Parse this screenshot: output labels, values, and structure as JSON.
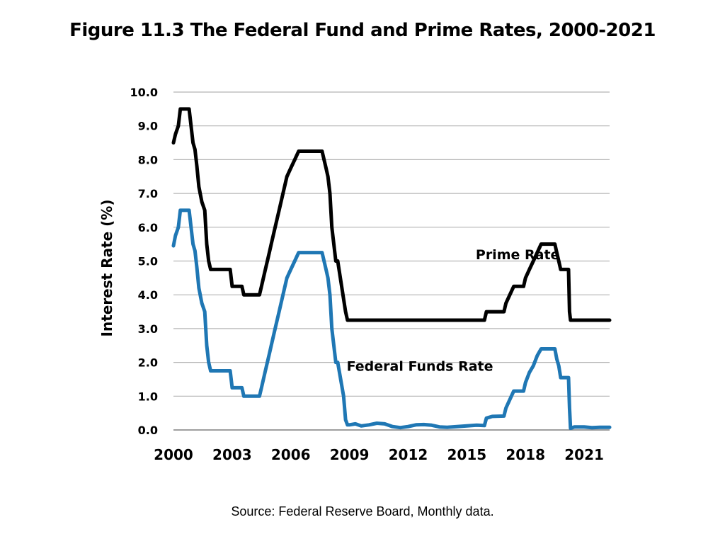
{
  "page": {
    "title": "Figure 11.3 The Federal Fund and Prime Rates, 2000-2021",
    "source": "Source: Federal Reserve Board, Monthly data."
  },
  "chart_data": {
    "type": "line",
    "title": "Figure 11.3 The Federal Fund and Prime Rates, 2000-2021",
    "xlabel": "",
    "ylabel": "Interest Rate (%)",
    "xlim": [
      2000,
      2022.3
    ],
    "ylim": [
      0,
      10
    ],
    "y_ticks": [
      0,
      1,
      2,
      3,
      4,
      5,
      6,
      7,
      8,
      9,
      10
    ],
    "y_tick_labels": [
      "0.0",
      "1.0",
      "2.0",
      "3.0",
      "4.0",
      "5.0",
      "6.0",
      "7.0",
      "8.0",
      "9.0",
      "10.0"
    ],
    "x_ticks": [
      2000,
      2003,
      2006,
      2009,
      2012,
      2015,
      2018,
      2021
    ],
    "x_tick_labels": [
      "2000",
      "2003",
      "2006",
      "2009",
      "2012",
      "2015",
      "2018",
      "2021"
    ],
    "grid": "horizontal",
    "series": [
      {
        "name": "Prime Rate",
        "color": "#000000",
        "label_anchor": [
          2017.6,
          5.05
        ],
        "x": [
          2000.0,
          2000.1,
          2000.25,
          2000.35,
          2000.5,
          2000.8,
          2001.0,
          2001.1,
          2001.2,
          2001.3,
          2001.45,
          2001.6,
          2001.7,
          2001.8,
          2001.9,
          2002.0,
          2002.1,
          2002.9,
          2003.0,
          2003.5,
          2003.6,
          2004.4,
          2004.5,
          2004.7,
          2004.9,
          2005.0,
          2005.2,
          2005.4,
          2005.6,
          2005.8,
          2006.0,
          2006.2,
          2006.4,
          2006.5,
          2006.6,
          2007.6,
          2007.8,
          2007.9,
          2008.0,
          2008.1,
          2008.3,
          2008.4,
          2008.8,
          2008.9,
          2009.0,
          2015.9,
          2016.0,
          2016.9,
          2017.0,
          2017.2,
          2017.4,
          2017.9,
          2018.0,
          2018.2,
          2018.4,
          2018.6,
          2018.8,
          2019.0,
          2019.5,
          2019.6,
          2019.7,
          2019.8,
          2020.2,
          2020.25,
          2020.3,
          2022.3
        ],
        "values": [
          8.5,
          8.75,
          9.0,
          9.5,
          9.5,
          9.5,
          8.5,
          8.3,
          7.8,
          7.2,
          6.75,
          6.5,
          5.5,
          5.0,
          4.75,
          4.75,
          4.75,
          4.75,
          4.25,
          4.25,
          4.0,
          4.0,
          4.25,
          4.75,
          5.25,
          5.5,
          6.0,
          6.5,
          7.0,
          7.5,
          7.75,
          8.0,
          8.25,
          8.25,
          8.25,
          8.25,
          7.75,
          7.5,
          7.0,
          6.0,
          5.0,
          5.0,
          3.5,
          3.25,
          3.25,
          3.25,
          3.5,
          3.5,
          3.75,
          4.0,
          4.25,
          4.25,
          4.5,
          4.75,
          5.0,
          5.25,
          5.5,
          5.5,
          5.5,
          5.25,
          5.0,
          4.75,
          4.75,
          3.5,
          3.25,
          3.25
        ]
      },
      {
        "name": "Federal Funds  Rate",
        "color": "#1f77b4",
        "label_anchor": [
          2012.6,
          1.75
        ],
        "x": [
          2000.0,
          2000.1,
          2000.25,
          2000.35,
          2000.5,
          2000.8,
          2001.0,
          2001.1,
          2001.2,
          2001.3,
          2001.45,
          2001.6,
          2001.7,
          2001.8,
          2001.9,
          2002.0,
          2002.1,
          2002.9,
          2003.0,
          2003.5,
          2003.6,
          2004.0,
          2004.4,
          2004.5,
          2004.7,
          2004.9,
          2005.0,
          2005.2,
          2005.4,
          2005.6,
          2005.8,
          2006.0,
          2006.2,
          2006.4,
          2006.5,
          2006.6,
          2007.6,
          2007.8,
          2007.9,
          2008.0,
          2008.1,
          2008.3,
          2008.4,
          2008.7,
          2008.8,
          2008.9,
          2009.0,
          2009.3,
          2009.6,
          2010.0,
          2010.4,
          2010.8,
          2011.2,
          2011.6,
          2012.0,
          2012.4,
          2012.8,
          2013.2,
          2013.6,
          2014.0,
          2014.5,
          2015.0,
          2015.5,
          2015.9,
          2016.0,
          2016.3,
          2016.9,
          2017.0,
          2017.2,
          2017.4,
          2017.9,
          2018.0,
          2018.2,
          2018.4,
          2018.6,
          2018.8,
          2019.0,
          2019.5,
          2019.6,
          2019.7,
          2019.8,
          2020.2,
          2020.25,
          2020.3,
          2020.5,
          2021.0,
          2021.4,
          2021.8,
          2022.3
        ],
        "values": [
          5.45,
          5.75,
          6.0,
          6.5,
          6.5,
          6.5,
          5.5,
          5.3,
          4.8,
          4.2,
          3.75,
          3.5,
          2.5,
          2.0,
          1.75,
          1.75,
          1.75,
          1.75,
          1.25,
          1.25,
          1.0,
          1.0,
          1.0,
          1.25,
          1.75,
          2.25,
          2.5,
          3.0,
          3.5,
          4.0,
          4.5,
          4.75,
          5.0,
          5.25,
          5.25,
          5.25,
          5.25,
          4.75,
          4.5,
          4.0,
          3.0,
          2.0,
          2.0,
          1.0,
          0.3,
          0.15,
          0.15,
          0.18,
          0.12,
          0.15,
          0.2,
          0.18,
          0.1,
          0.07,
          0.1,
          0.15,
          0.16,
          0.14,
          0.09,
          0.08,
          0.1,
          0.12,
          0.14,
          0.13,
          0.35,
          0.4,
          0.41,
          0.65,
          0.9,
          1.15,
          1.15,
          1.4,
          1.7,
          1.9,
          2.2,
          2.4,
          2.4,
          2.4,
          2.1,
          1.9,
          1.55,
          1.55,
          0.65,
          0.05,
          0.09,
          0.09,
          0.07,
          0.08,
          0.08
        ]
      }
    ]
  }
}
